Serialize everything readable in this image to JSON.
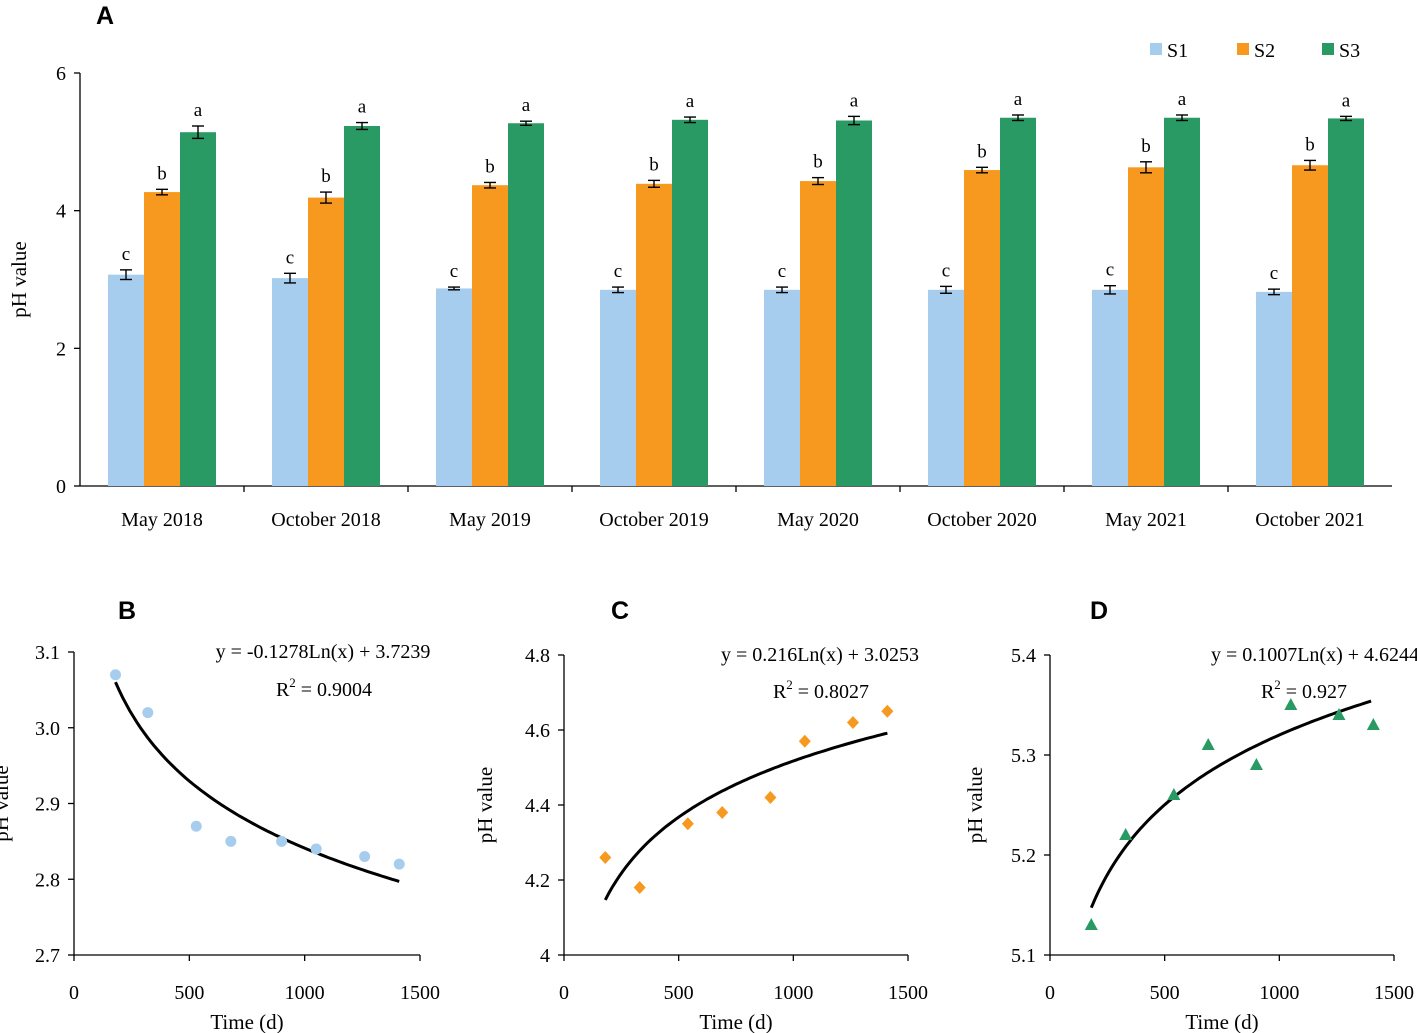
{
  "figure": {
    "background": "#ffffff"
  },
  "chart_data": [
    {
      "panel": "A",
      "type": "bar",
      "ylabel": "pH value",
      "xlabel": "",
      "ylim": [
        0,
        6
      ],
      "yticks": [
        "0",
        "2",
        "4",
        "6"
      ],
      "categories": [
        "May 2018",
        "October 2018",
        "May 2019",
        "October 2019",
        "May 2020",
        "October 2020",
        "May 2021",
        "October 2021"
      ],
      "legend_position": "top-right",
      "series": [
        {
          "name": "S1",
          "color": "#a6cdee",
          "values": [
            3.07,
            3.02,
            2.87,
            2.85,
            2.85,
            2.85,
            2.85,
            2.82
          ],
          "errors": [
            0.07,
            0.07,
            0.02,
            0.04,
            0.04,
            0.05,
            0.06,
            0.04
          ],
          "letters": [
            "c",
            "c",
            "c",
            "c",
            "c",
            "c",
            "c",
            "c"
          ]
        },
        {
          "name": "S2",
          "color": "#f7991f",
          "values": [
            4.27,
            4.19,
            4.37,
            4.39,
            4.43,
            4.59,
            4.63,
            4.66
          ],
          "errors": [
            0.04,
            0.08,
            0.04,
            0.05,
            0.05,
            0.04,
            0.08,
            0.07
          ],
          "letters": [
            "b",
            "b",
            "b",
            "b",
            "b",
            "b",
            "b",
            "b"
          ]
        },
        {
          "name": "S3",
          "color": "#2a9a64",
          "values": [
            5.14,
            5.23,
            5.27,
            5.32,
            5.31,
            5.35,
            5.35,
            5.34
          ],
          "errors": [
            0.09,
            0.05,
            0.03,
            0.04,
            0.06,
            0.04,
            0.04,
            0.03
          ],
          "letters": [
            "a",
            "a",
            "a",
            "a",
            "a",
            "a",
            "a",
            "a"
          ]
        }
      ]
    },
    {
      "panel": "B",
      "type": "scatter",
      "xlabel": "Time (d)",
      "ylabel": "pH value",
      "xlim": [
        0,
        1500
      ],
      "ylim": [
        2.7,
        3.1
      ],
      "xticks": [
        "0",
        "500",
        "1000",
        "1500"
      ],
      "yticks": [
        "2.7",
        "2.8",
        "2.9",
        "3.0",
        "3.1"
      ],
      "marker": "circle",
      "color": "#a6cdee",
      "x": [
        180,
        320,
        530,
        680,
        900,
        1050,
        1260,
        1410
      ],
      "y": [
        3.07,
        3.02,
        2.87,
        2.85,
        2.85,
        2.84,
        2.83,
        2.82
      ],
      "fit": {
        "a": -0.1278,
        "b": 3.7239,
        "x_from": 180,
        "x_to": 1410
      },
      "equation": "y = -0.1278Ln(x) + 3.7239",
      "r2_label": "R",
      "r2_sup": "2",
      "r2_value": " = 0.9004"
    },
    {
      "panel": "C",
      "type": "scatter",
      "xlabel": "Time (d)",
      "ylabel": "pH value",
      "xlim": [
        0,
        1500
      ],
      "ylim": [
        4,
        4.8
      ],
      "xticks": [
        "0",
        "500",
        "1000",
        "1500"
      ],
      "yticks": [
        "4",
        "4.2",
        "4.4",
        "4.6",
        "4.8"
      ],
      "marker": "diamond",
      "color": "#f7991f",
      "x": [
        180,
        330,
        540,
        690,
        900,
        1050,
        1260,
        1410
      ],
      "y": [
        4.26,
        4.18,
        4.35,
        4.38,
        4.42,
        4.57,
        4.62,
        4.65
      ],
      "fit": {
        "a": 0.216,
        "b": 3.0253,
        "x_from": 180,
        "x_to": 1410
      },
      "equation": "y = 0.216Ln(x) + 3.0253",
      "r2_label": "R",
      "r2_sup": "2",
      "r2_value": " = 0.8027"
    },
    {
      "panel": "D",
      "type": "scatter",
      "xlabel": "Time (d)",
      "ylabel": "pH value",
      "xlim": [
        0,
        1500
      ],
      "ylim": [
        5.1,
        5.4
      ],
      "xticks": [
        "0",
        "500",
        "1000",
        "1500"
      ],
      "yticks": [
        "5.1",
        "5.2",
        "5.3",
        "5.4"
      ],
      "marker": "triangle",
      "color": "#2a9a64",
      "x": [
        180,
        330,
        540,
        690,
        900,
        1050,
        1260,
        1410
      ],
      "y": [
        5.13,
        5.22,
        5.26,
        5.31,
        5.29,
        5.35,
        5.34,
        5.33
      ],
      "fit": {
        "a": 0.1007,
        "b": 4.6244,
        "x_from": 180,
        "x_to": 1400
      },
      "equation": "y = 0.1007Ln(x) + 4.6244",
      "r2_label": "R",
      "r2_sup": "2",
      "r2_value": " = 0.927"
    }
  ]
}
